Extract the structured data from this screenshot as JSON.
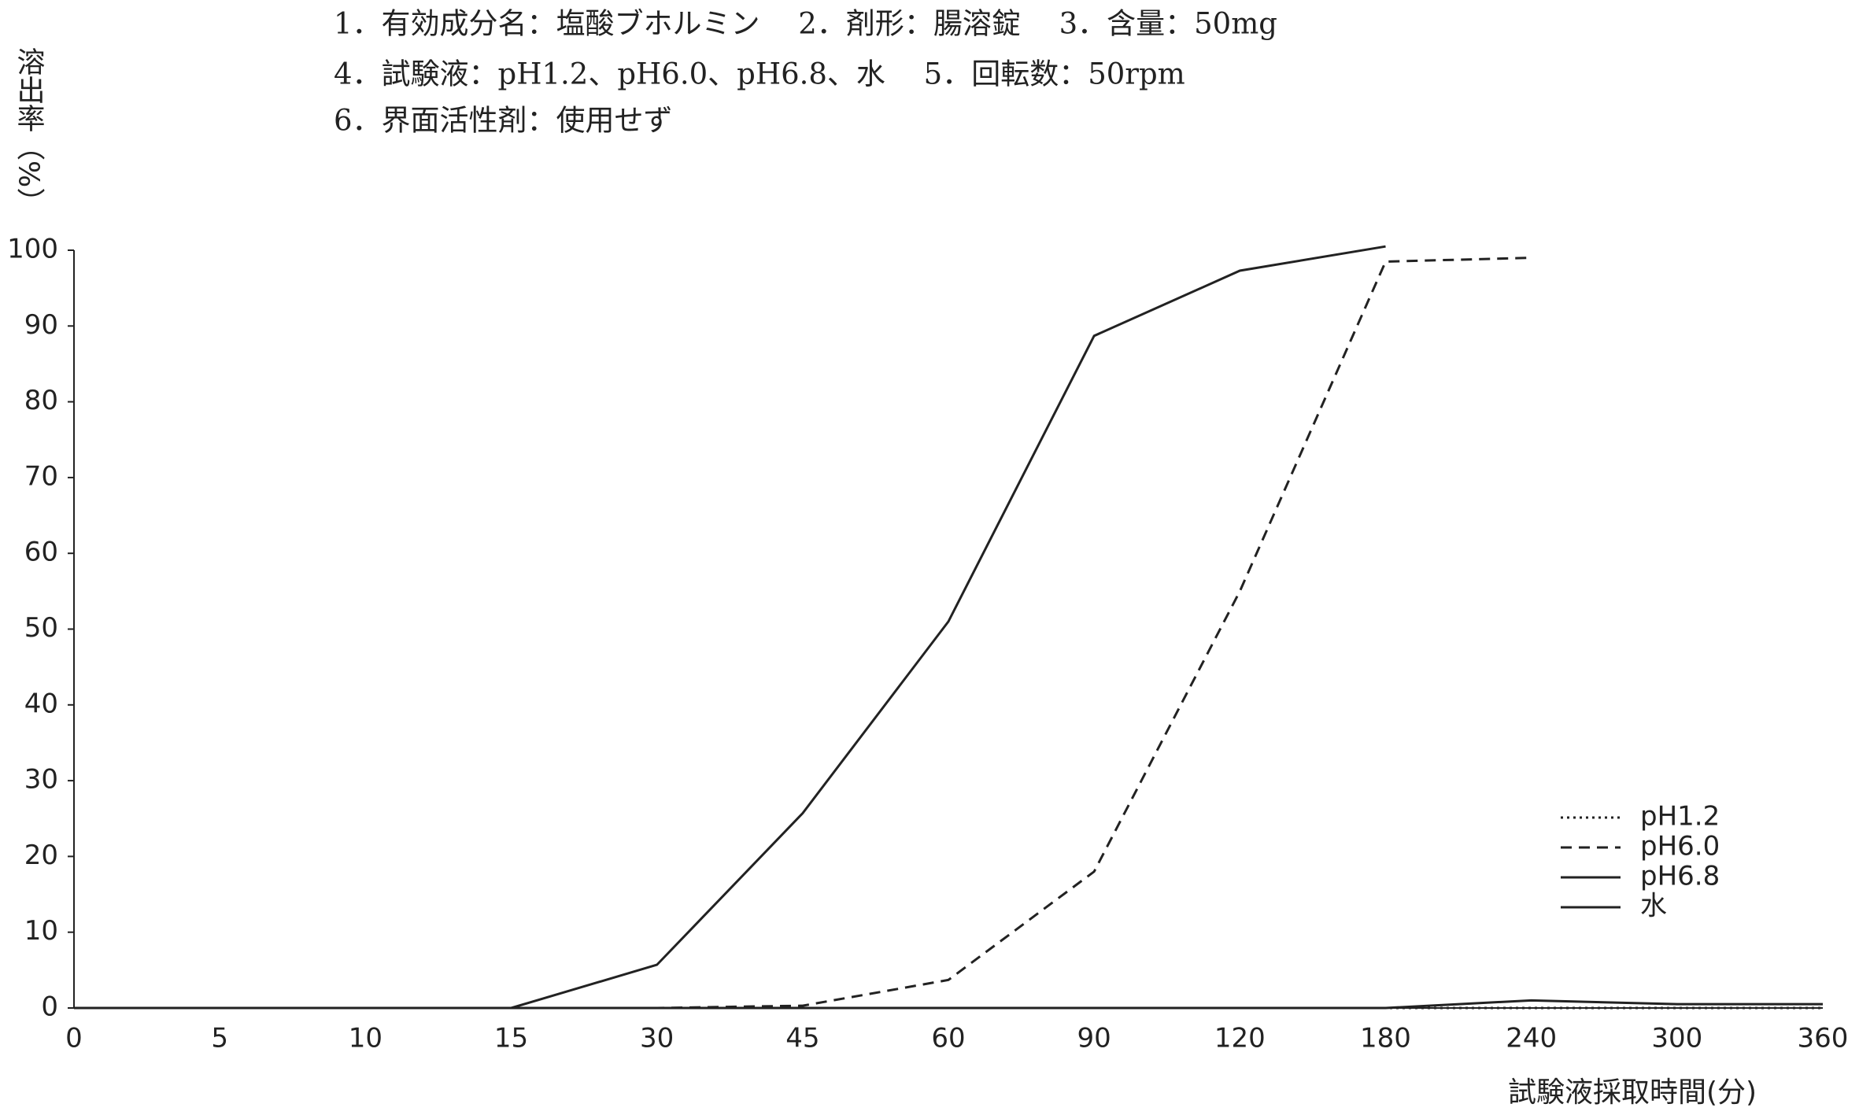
{
  "chart_data": {
    "type": "line",
    "header": [
      "1．有効成分名：塩酸ブホルミン　 2．剤形：腸溶錠　 3．含量：50mg",
      "4．試験液：pH1.2、pH6.0、pH6.8、水　 5．回転数：50rpm",
      "6．界面活性剤：使用せず"
    ],
    "y_label": "溶出率（%）",
    "x_label": "試験液採取時間(分)",
    "categories": [
      "0",
      "5",
      "10",
      "15",
      "30",
      "45",
      "60",
      "90",
      "120",
      "180",
      "240",
      "300",
      "360"
    ],
    "series": [
      {
        "name": "pH1.2",
        "color": "#222",
        "dash": "dotted",
        "values": [
          0,
          0,
          0,
          0,
          0,
          0,
          0,
          0,
          0,
          0,
          0,
          0,
          0
        ]
      },
      {
        "name": "pH6.0",
        "color": "#222",
        "dash": "dashed",
        "values": [
          0,
          0,
          0,
          0,
          0,
          0.3,
          3.7,
          18,
          55,
          98.5,
          99,
          null,
          null
        ]
      },
      {
        "name": "pH6.8",
        "color": "#222",
        "dash": "solid",
        "values": [
          0,
          0,
          0,
          0,
          5.7,
          25.7,
          51,
          88.7,
          97.3,
          100.5,
          null,
          null,
          null
        ]
      },
      {
        "name": "水",
        "color": "#222",
        "dash": "solid",
        "values": [
          0,
          0,
          0,
          0,
          0,
          0,
          0,
          0,
          0,
          0,
          1.0,
          0.5,
          0.5
        ]
      }
    ],
    "ylim": [
      0,
      100
    ],
    "yticks": [
      0,
      10,
      20,
      30,
      40,
      50,
      60,
      70,
      80,
      90,
      100
    ]
  }
}
